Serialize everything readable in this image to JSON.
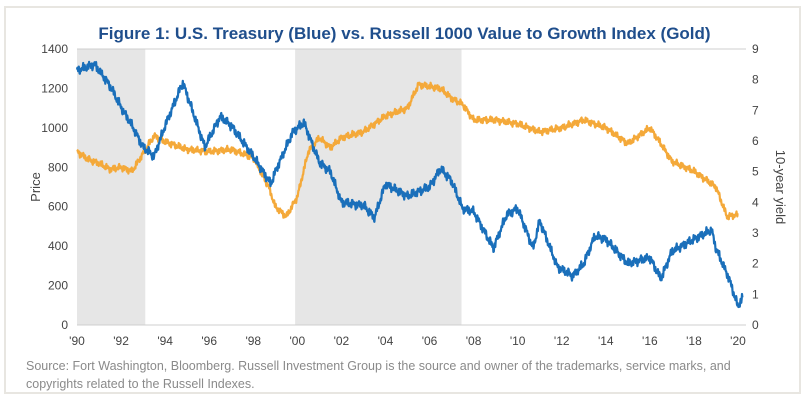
{
  "chart_data": {
    "type": "line",
    "title": "Figure 1:  U.S. Treasury (Blue) vs. Russell 1000 Value to Growth Index (Gold)",
    "ylabel": "Price",
    "y2label": "10-year yield",
    "xlim": [
      1990,
      2020
    ],
    "ylim": [
      0,
      1400
    ],
    "y2lim": [
      0,
      9
    ],
    "x_ticks": [
      "'90",
      "'92",
      "'94",
      "'96",
      "'98",
      "'00",
      "'02",
      "'04",
      "'06",
      "'08",
      "'10",
      "'12",
      "'14",
      "'16",
      "'18",
      "'20"
    ],
    "y_ticks": [
      "0",
      "200",
      "400",
      "600",
      "800",
      "1000",
      "1200",
      "1400"
    ],
    "y2_ticks": [
      "0",
      "1",
      "2",
      "3",
      "4",
      "5",
      "6",
      "7",
      "8",
      "9"
    ],
    "grid": false,
    "shaded_periods": [
      [
        1990,
        1993.1
      ],
      [
        1999.9,
        2007.45
      ]
    ],
    "shade_color": "#e6e6e6",
    "series": [
      {
        "name": "Russell 1000 Value to Growth Index (Gold)",
        "axis": "left",
        "color": "#f4a93a",
        "points": [
          [
            1990,
            880
          ],
          [
            1990.5,
            840
          ],
          [
            1991,
            820
          ],
          [
            1991.5,
            790
          ],
          [
            1992,
            800
          ],
          [
            1992.5,
            780
          ],
          [
            1993,
            870
          ],
          [
            1993.5,
            960
          ],
          [
            1994,
            930
          ],
          [
            1995,
            890
          ],
          [
            1996,
            880
          ],
          [
            1997,
            890
          ],
          [
            1998,
            850
          ],
          [
            1998.7,
            700
          ],
          [
            1999,
            600
          ],
          [
            1999.5,
            550
          ],
          [
            2000,
            650
          ],
          [
            2000.5,
            880
          ],
          [
            2001,
            950
          ],
          [
            2001.5,
            900
          ],
          [
            2002,
            950
          ],
          [
            2003,
            980
          ],
          [
            2004,
            1060
          ],
          [
            2005,
            1100
          ],
          [
            2005.5,
            1220
          ],
          [
            2006,
            1210
          ],
          [
            2006.5,
            1200
          ],
          [
            2007,
            1150
          ],
          [
            2007.5,
            1120
          ],
          [
            2008,
            1040
          ],
          [
            2009,
            1040
          ],
          [
            2010,
            1020
          ],
          [
            2011,
            980
          ],
          [
            2012,
            1000
          ],
          [
            2013,
            1040
          ],
          [
            2014,
            1000
          ],
          [
            2015,
            920
          ],
          [
            2016,
            1000
          ],
          [
            2016.5,
            920
          ],
          [
            2017,
            830
          ],
          [
            2018,
            780
          ],
          [
            2019,
            700
          ],
          [
            2019.5,
            550
          ],
          [
            2020,
            560
          ]
        ]
      },
      {
        "name": "U.S. Treasury (Blue)",
        "axis": "right",
        "color": "#1a6fba",
        "points": [
          [
            1990,
            8.3
          ],
          [
            1990.8,
            8.5
          ],
          [
            1991.5,
            7.8
          ],
          [
            1992,
            7.1
          ],
          [
            1992.5,
            6.5
          ],
          [
            1993,
            5.8
          ],
          [
            1993.5,
            5.5
          ],
          [
            1994,
            6.5
          ],
          [
            1994.8,
            7.9
          ],
          [
            1995,
            7.5
          ],
          [
            1995.8,
            5.8
          ],
          [
            1996.5,
            6.8
          ],
          [
            1997,
            6.5
          ],
          [
            1998,
            5.5
          ],
          [
            1998.8,
            4.6
          ],
          [
            1999,
            5.0
          ],
          [
            1999.8,
            6.3
          ],
          [
            2000.3,
            6.6
          ],
          [
            2001,
            5.3
          ],
          [
            2001.5,
            5.0
          ],
          [
            2002,
            4.0
          ],
          [
            2003,
            3.9
          ],
          [
            2003.5,
            3.5
          ],
          [
            2004,
            4.6
          ],
          [
            2005,
            4.2
          ],
          [
            2006,
            4.5
          ],
          [
            2006.5,
            5.1
          ],
          [
            2007,
            4.7
          ],
          [
            2007.5,
            3.8
          ],
          [
            2008,
            3.7
          ],
          [
            2008.9,
            2.5
          ],
          [
            2009.5,
            3.6
          ],
          [
            2010,
            3.8
          ],
          [
            2010.7,
            2.5
          ],
          [
            2011,
            3.4
          ],
          [
            2011.8,
            1.9
          ],
          [
            2012.5,
            1.6
          ],
          [
            2013,
            2.0
          ],
          [
            2013.5,
            2.9
          ],
          [
            2014,
            2.8
          ],
          [
            2015,
            2.0
          ],
          [
            2016,
            2.2
          ],
          [
            2016.5,
            1.5
          ],
          [
            2017,
            2.4
          ],
          [
            2018,
            2.8
          ],
          [
            2018.8,
            3.1
          ],
          [
            2019,
            2.5
          ],
          [
            2019.6,
            1.5
          ],
          [
            2020,
            0.6
          ],
          [
            2020.2,
            0.9
          ]
        ]
      }
    ]
  },
  "source_note": "Source: Fort Washington, Bloomberg. Russell Investment Group is the source and owner of the trademarks, service marks, and copyrights related to the Russell Indexes."
}
